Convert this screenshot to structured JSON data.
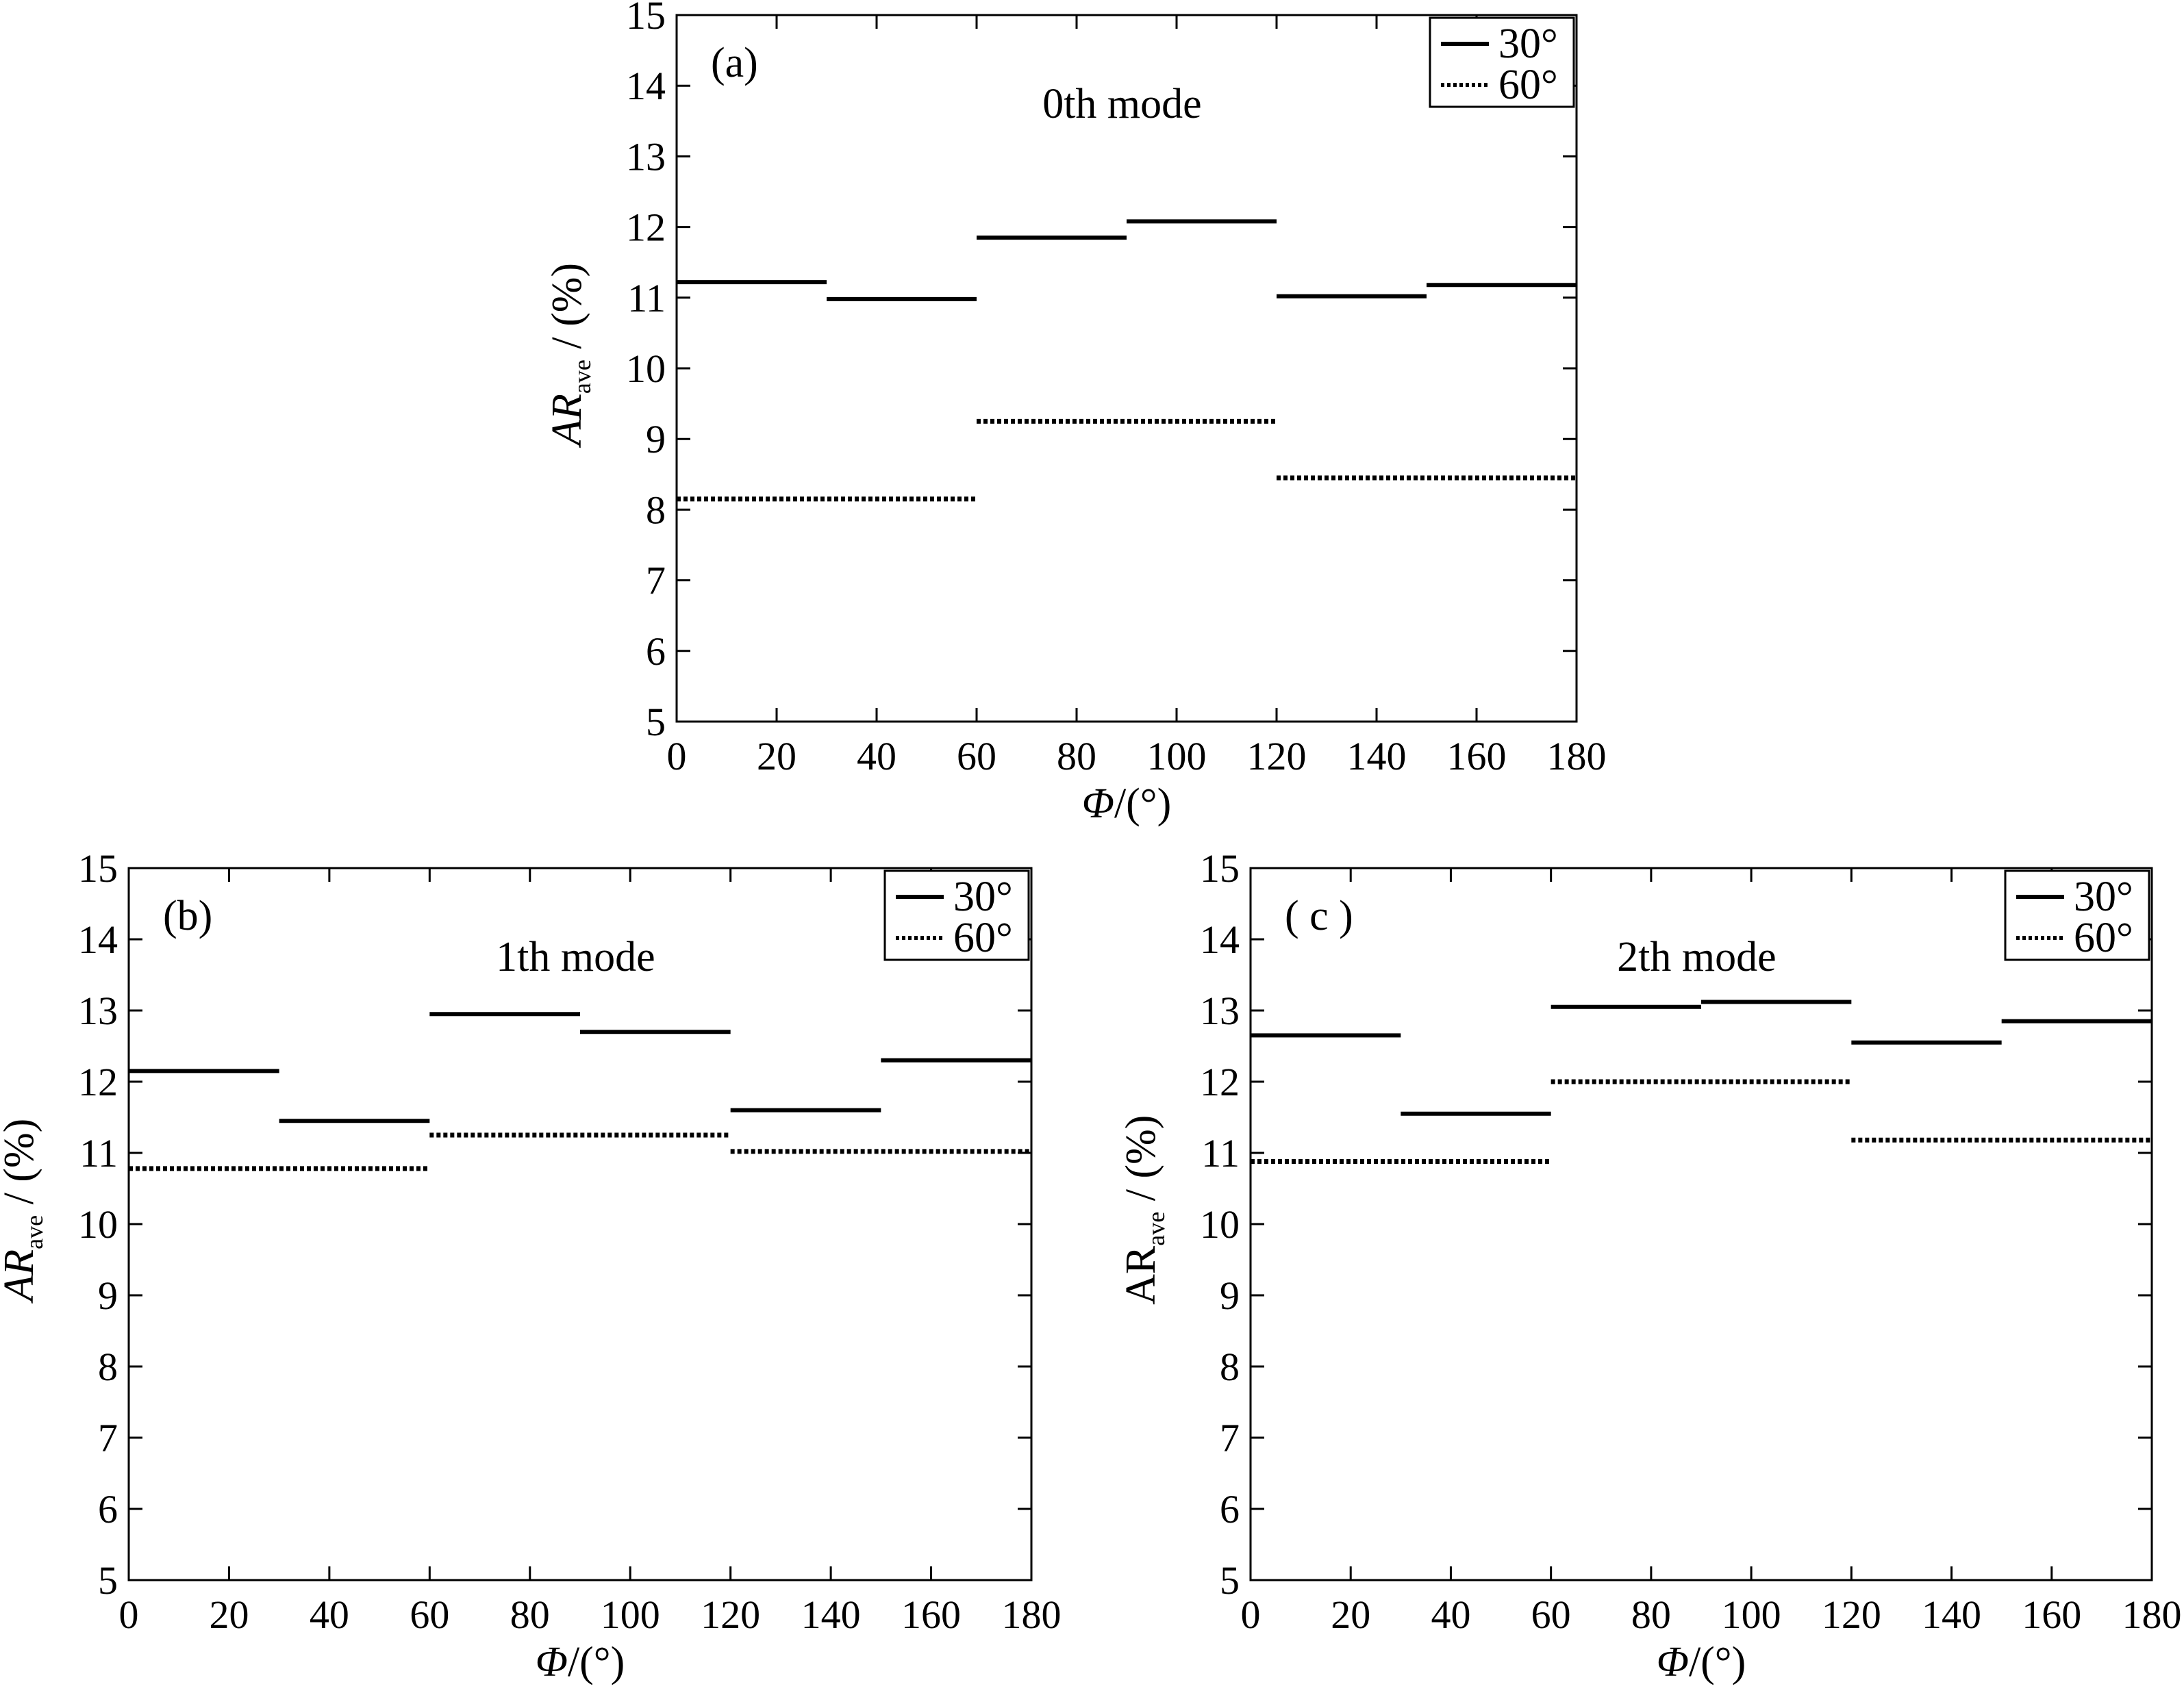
{
  "chart_data": [
    {
      "type": "line",
      "panel_label": "(a)",
      "annotation": "0th mode",
      "xlabel": "Φ/(°)",
      "ylabel": {
        "main": "AR",
        "sub": "ave",
        "unit": " / (%)"
      },
      "ylabel_italic": true,
      "xlim": [
        0,
        180
      ],
      "ylim": [
        5,
        15
      ],
      "xticks": [
        0,
        20,
        40,
        60,
        80,
        100,
        120,
        140,
        160,
        180
      ],
      "yticks": [
        5,
        6,
        7,
        8,
        9,
        10,
        11,
        12,
        13,
        14,
        15
      ],
      "grid": false,
      "legend_position": "top-right",
      "series": [
        {
          "name": "30°",
          "style": "solid",
          "segments": [
            {
              "x": [
                0,
                30
              ],
              "y": 11.22
            },
            {
              "x": [
                30,
                60
              ],
              "y": 10.98
            },
            {
              "x": [
                60,
                90
              ],
              "y": 11.85
            },
            {
              "x": [
                90,
                120
              ],
              "y": 12.08
            },
            {
              "x": [
                120,
                150
              ],
              "y": 11.02
            },
            {
              "x": [
                150,
                180
              ],
              "y": 11.18
            }
          ]
        },
        {
          "name": "60°",
          "style": "dotted",
          "segments": [
            {
              "x": [
                0,
                60
              ],
              "y": 8.15
            },
            {
              "x": [
                60,
                120
              ],
              "y": 9.25
            },
            {
              "x": [
                120,
                180
              ],
              "y": 8.45
            }
          ]
        }
      ]
    },
    {
      "type": "line",
      "panel_label": "(b)",
      "annotation": "1th mode",
      "xlabel": "Φ/(°)",
      "ylabel": {
        "main": "AR",
        "sub": "ave",
        "unit": " / (%)"
      },
      "ylabel_italic": true,
      "xlim": [
        0,
        180
      ],
      "ylim": [
        5,
        15
      ],
      "xticks": [
        0,
        20,
        40,
        60,
        80,
        100,
        120,
        140,
        160,
        180
      ],
      "yticks": [
        5,
        6,
        7,
        8,
        9,
        10,
        11,
        12,
        13,
        14,
        15
      ],
      "grid": false,
      "legend_position": "top-right",
      "series": [
        {
          "name": "30°",
          "style": "solid",
          "segments": [
            {
              "x": [
                0,
                30
              ],
              "y": 12.15
            },
            {
              "x": [
                30,
                60
              ],
              "y": 11.45
            },
            {
              "x": [
                60,
                90
              ],
              "y": 12.95
            },
            {
              "x": [
                90,
                120
              ],
              "y": 12.7
            },
            {
              "x": [
                120,
                150
              ],
              "y": 11.6
            },
            {
              "x": [
                150,
                180
              ],
              "y": 12.3
            }
          ]
        },
        {
          "name": "60°",
          "style": "dotted",
          "segments": [
            {
              "x": [
                0,
                60
              ],
              "y": 10.78
            },
            {
              "x": [
                60,
                120
              ],
              "y": 11.25
            },
            {
              "x": [
                120,
                180
              ],
              "y": 11.02
            }
          ]
        }
      ]
    },
    {
      "type": "line",
      "panel_label": "( c )",
      "annotation": "2th mode",
      "xlabel": "Φ/(°)",
      "ylabel": {
        "main": "AR",
        "sub": "ave",
        "unit": " / (%)"
      },
      "ylabel_italic": false,
      "xlim": [
        0,
        180
      ],
      "ylim": [
        5,
        15
      ],
      "xticks": [
        0,
        20,
        40,
        60,
        80,
        100,
        120,
        140,
        160,
        180
      ],
      "yticks": [
        5,
        6,
        7,
        8,
        9,
        10,
        11,
        12,
        13,
        14,
        15
      ],
      "grid": false,
      "legend_position": "top-right",
      "series": [
        {
          "name": "30°",
          "style": "solid",
          "segments": [
            {
              "x": [
                0,
                30
              ],
              "y": 12.65
            },
            {
              "x": [
                30,
                60
              ],
              "y": 11.55
            },
            {
              "x": [
                60,
                90
              ],
              "y": 13.05
            },
            {
              "x": [
                90,
                120
              ],
              "y": 13.12
            },
            {
              "x": [
                120,
                150
              ],
              "y": 12.55
            },
            {
              "x": [
                150,
                180
              ],
              "y": 12.85
            }
          ]
        },
        {
          "name": "60°",
          "style": "dotted",
          "segments": [
            {
              "x": [
                0,
                60
              ],
              "y": 10.88
            },
            {
              "x": [
                60,
                120
              ],
              "y": 12.0
            },
            {
              "x": [
                120,
                180
              ],
              "y": 11.18
            }
          ]
        }
      ]
    }
  ]
}
